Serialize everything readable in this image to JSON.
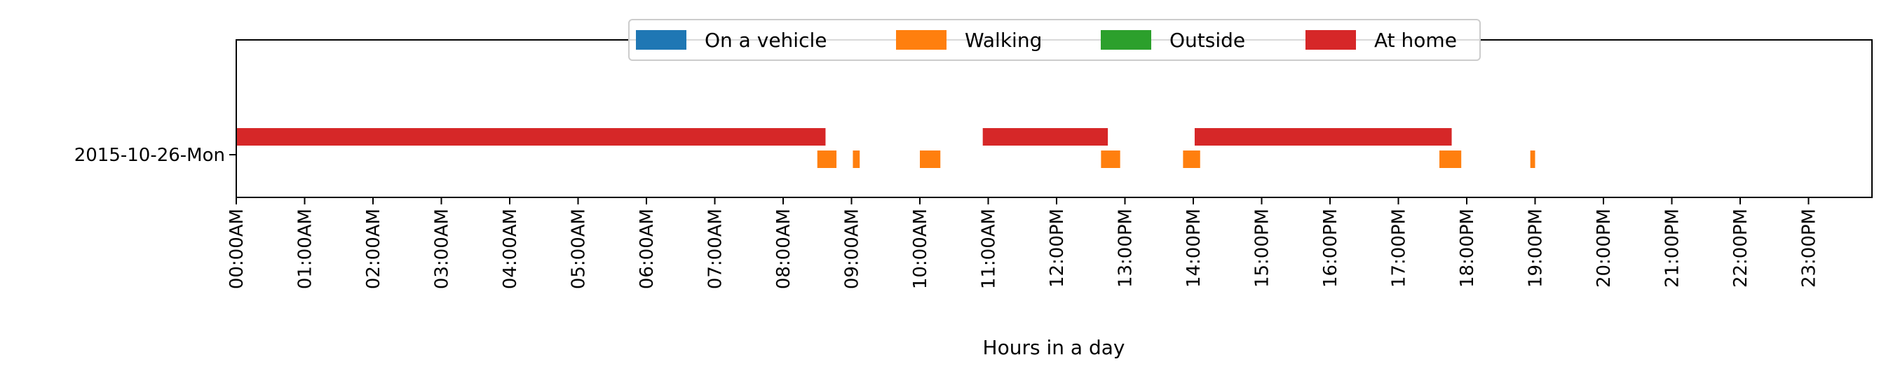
{
  "chart_data": {
    "type": "timeline",
    "xlabel": "Hours in a day",
    "ylabel": "",
    "xlim": [
      0,
      24
    ],
    "x_ticks": [
      0,
      1,
      2,
      3,
      4,
      5,
      6,
      7,
      8,
      9,
      10,
      11,
      12,
      13,
      14,
      15,
      16,
      17,
      18,
      19,
      20,
      21,
      22,
      23
    ],
    "x_tick_labels": [
      "00:00AM",
      "01:00AM",
      "02:00AM",
      "03:00AM",
      "04:00AM",
      "05:00AM",
      "06:00AM",
      "07:00AM",
      "08:00AM",
      "09:00AM",
      "10:00AM",
      "11:00AM",
      "12:00PM",
      "13:00PM",
      "14:00PM",
      "15:00PM",
      "16:00PM",
      "17:00PM",
      "18:00PM",
      "19:00PM",
      "20:00PM",
      "21:00PM",
      "22:00PM",
      "23:00PM"
    ],
    "categories": [
      "2015-10-26-Mon"
    ],
    "grid": false,
    "legend_position": "top-center",
    "series": [
      {
        "name": "On a vehicle",
        "color": "#1f77b4",
        "intervals": []
      },
      {
        "name": "Walking",
        "color": "#ff7f0e",
        "intervals": [
          [
            8.5,
            8.78
          ],
          [
            9.02,
            9.12
          ],
          [
            10.0,
            10.3
          ],
          [
            12.65,
            12.93
          ],
          [
            13.85,
            14.1
          ],
          [
            17.6,
            17.92
          ],
          [
            18.93,
            19.0
          ]
        ]
      },
      {
        "name": "Outside",
        "color": "#2ca02c",
        "intervals": []
      },
      {
        "name": "At home",
        "color": "#d62728",
        "intervals": [
          [
            0.0,
            8.62
          ],
          [
            10.92,
            12.75
          ],
          [
            14.02,
            17.78
          ]
        ]
      }
    ]
  }
}
